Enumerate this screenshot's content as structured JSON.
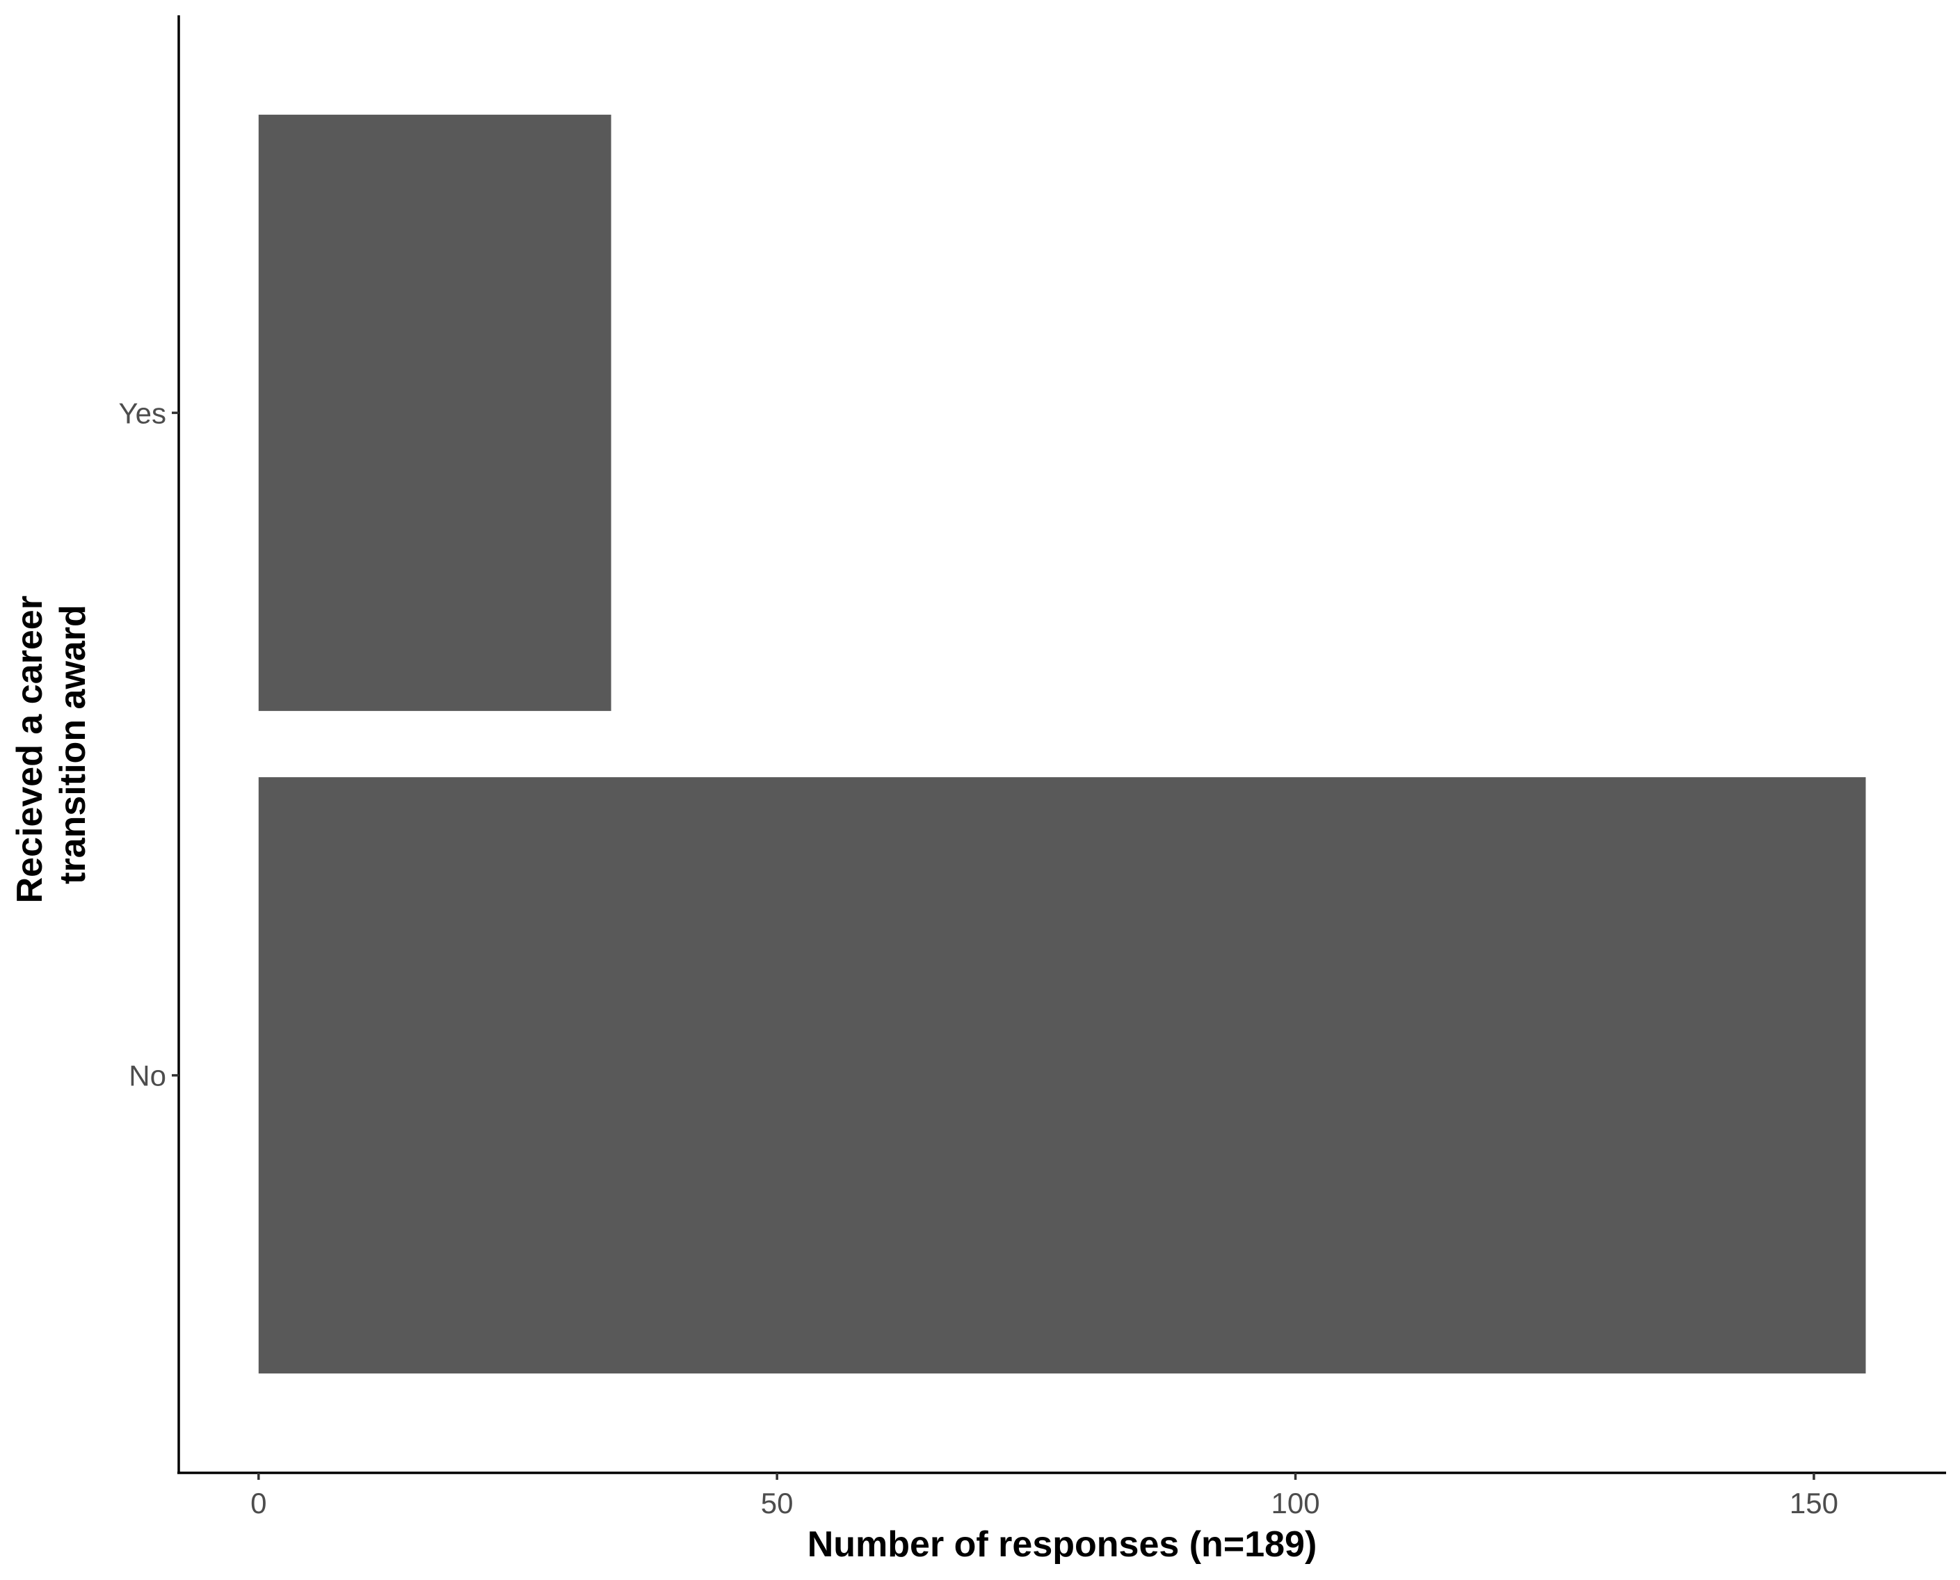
{
  "chart_data": {
    "type": "bar",
    "orientation": "horizontal",
    "categories": [
      "No",
      "Yes"
    ],
    "values": [
      155,
      34
    ],
    "xlabel": "Number of responses (n=189)",
    "ylabel_lines": [
      "Recieved a career",
      "transition award"
    ],
    "xticks": [
      0,
      50,
      100,
      150
    ],
    "xlim": [
      -7.7,
      162.75
    ],
    "bar_color": "#595959",
    "grid": false,
    "legend": "none"
  }
}
